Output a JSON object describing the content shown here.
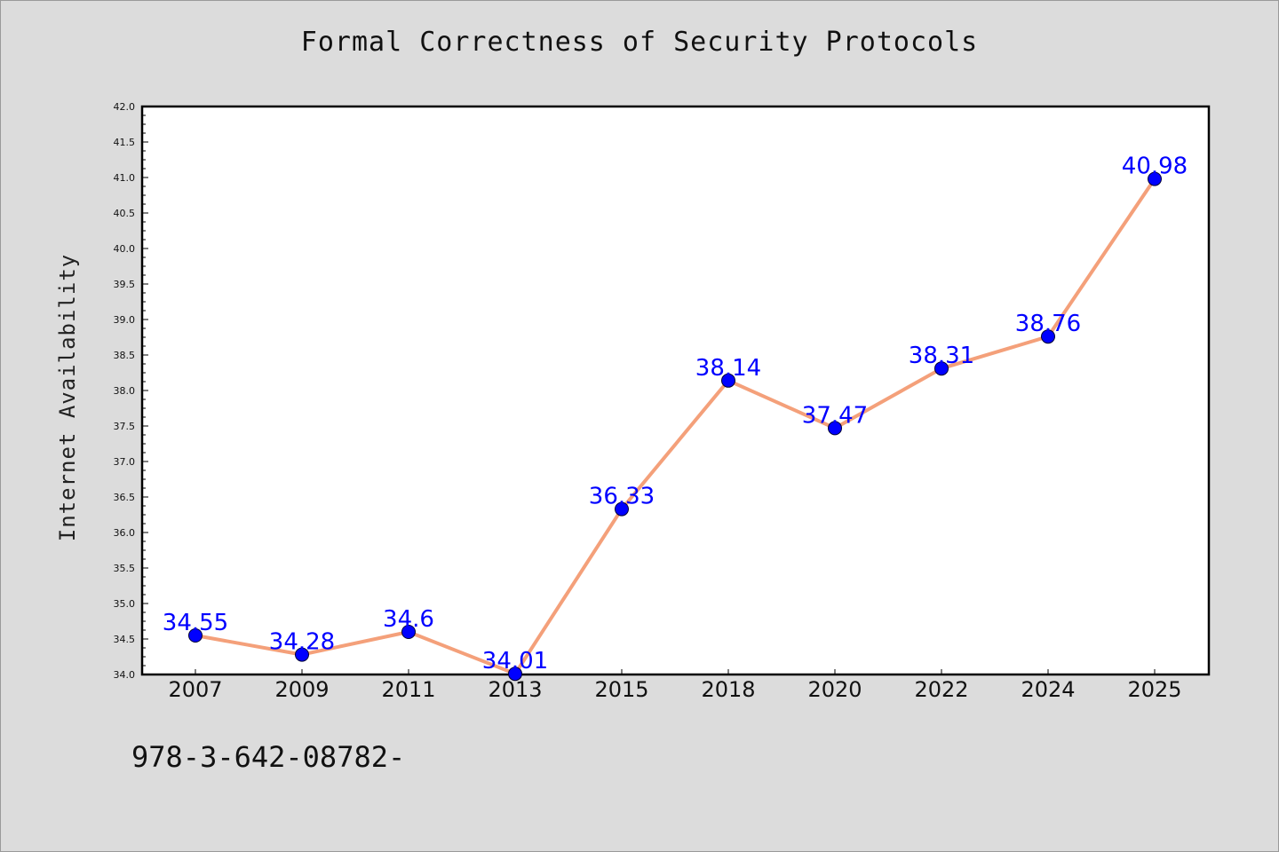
{
  "chart_data": {
    "type": "line",
    "title": "Formal Correctness of Security Protocols",
    "xlabel": "",
    "ylabel": "Internet Availability",
    "categories": [
      "2007",
      "2009",
      "2011",
      "2013",
      "2015",
      "2018",
      "2020",
      "2022",
      "2024",
      "2025"
    ],
    "series": [
      {
        "values": [
          34.55,
          34.28,
          34.6,
          34.01,
          36.33,
          38.14,
          37.47,
          38.31,
          38.76,
          40.98
        ],
        "data_labels": [
          "34.55",
          "34.28",
          "34.6",
          "34.01",
          "36.33",
          "38.14",
          "37.47",
          "38.31",
          "38.76",
          "40.98"
        ],
        "line_color": "#f4a07a",
        "marker_color": "#0000ff"
      }
    ],
    "ylim": [
      34.0,
      42.0
    ],
    "yticks": [
      "34.0",
      "34.5",
      "35.0",
      "35.5",
      "36.0",
      "36.5",
      "37.0",
      "37.5",
      "38.0",
      "38.5",
      "39.0",
      "39.5",
      "40.0",
      "40.5",
      "41.0",
      "41.5",
      "42.0"
    ],
    "grid": false,
    "legend": "none"
  },
  "footnote": "978-3-642-08782-",
  "colors": {
    "background": "#dcdcdc",
    "plot_background": "#ffffff",
    "line": "#f4a07a",
    "marker": "#0000ff",
    "data_label": "#0000ff"
  }
}
